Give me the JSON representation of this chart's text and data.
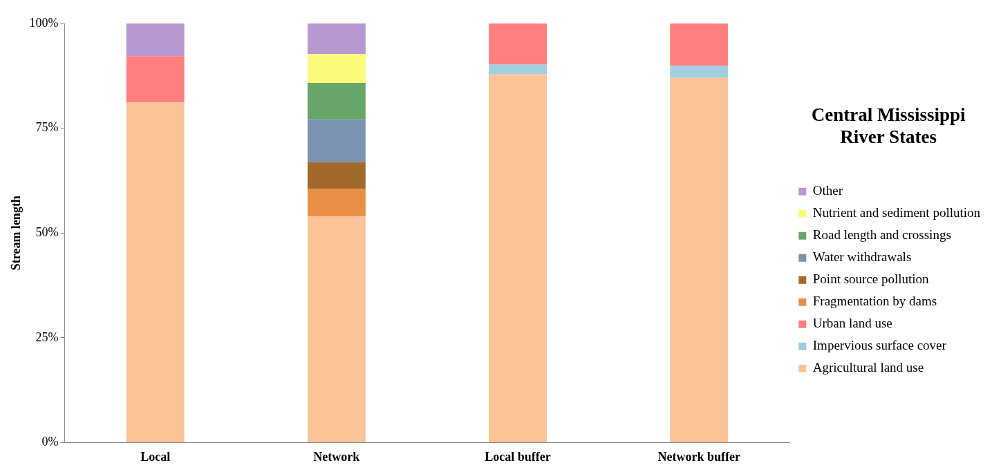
{
  "chart_data": {
    "type": "bar",
    "stacked": true,
    "legend": "right",
    "legend_title": "Central Mississippi River States",
    "ylabel": "Stream length",
    "categories": [
      "Local",
      "Network",
      "Local buffer",
      "Network buffer"
    ],
    "ylim": [
      0,
      100
    ],
    "yticks": [
      {
        "value": 0,
        "label": "0%"
      },
      {
        "value": 25,
        "label": "25%"
      },
      {
        "value": 50,
        "label": "50%"
      },
      {
        "value": 75,
        "label": "75%"
      },
      {
        "value": 100,
        "label": "100%"
      }
    ],
    "grid": false,
    "series": [
      {
        "name": "Agricultural land use",
        "color": "#fac498",
        "values": [
          81.1,
          53.9,
          87.9,
          87.0
        ]
      },
      {
        "name": "Impervious surface cover",
        "color": "#a0cfe0",
        "values": [
          0,
          0,
          2.3,
          2.9
        ]
      },
      {
        "name": "Urban land use",
        "color": "#ff7f7f",
        "values": [
          11.1,
          0,
          9.8,
          10.1
        ]
      },
      {
        "name": "Fragmentation by dams",
        "color": "#e98f47",
        "values": [
          0,
          6.6,
          0,
          0
        ]
      },
      {
        "name": "Point source pollution",
        "color": "#a26a2a",
        "values": [
          0,
          6.4,
          0,
          0
        ]
      },
      {
        "name": "Water withdrawals",
        "color": "#7a93b2",
        "values": [
          0,
          10.2,
          0,
          0
        ]
      },
      {
        "name": "Road length and crossings",
        "color": "#67a668",
        "values": [
          0,
          8.7,
          0,
          0
        ]
      },
      {
        "name": "Nutrient and sediment pollution",
        "color": "#fcfa7a",
        "values": [
          0,
          6.9,
          0,
          0
        ]
      },
      {
        "name": "Other",
        "color": "#b599d0",
        "values": [
          7.8,
          7.3,
          0,
          0
        ]
      }
    ]
  }
}
